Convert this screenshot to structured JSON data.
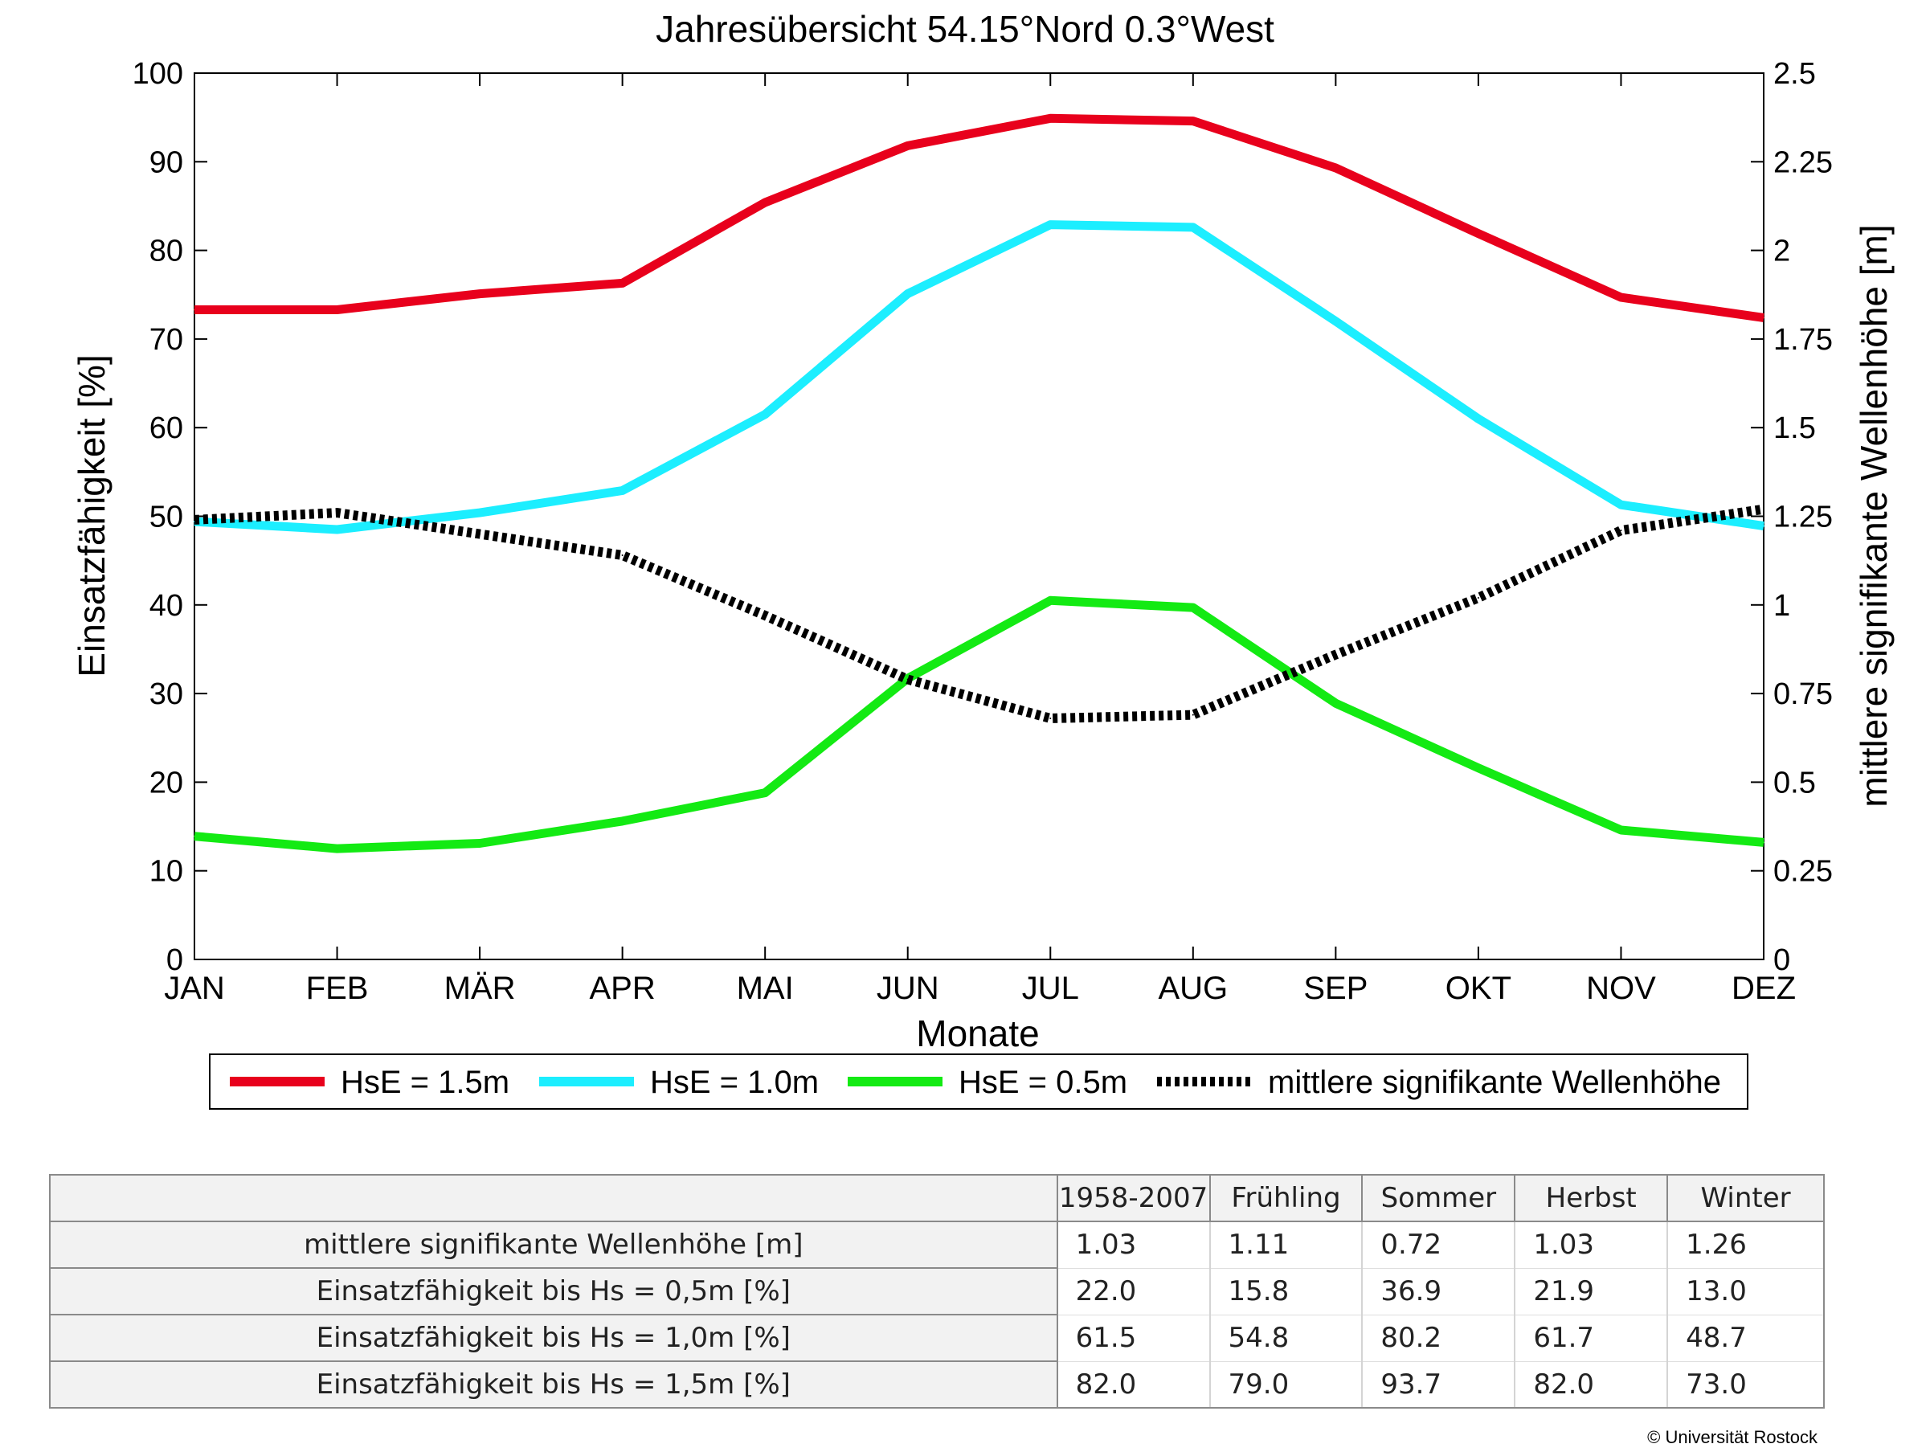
{
  "chart_data": {
    "type": "line",
    "title": "Jahresübersicht  54.15°Nord  0.3°West",
    "xlabel": "Monate",
    "ylabel": "Einsatzfähigkeit [%]",
    "y2label": "mittlere signifikante Wellenhöhe [m]",
    "categories": [
      "JAN",
      "FEB",
      "MÄR",
      "APR",
      "MAI",
      "JUN",
      "JUL",
      "AUG",
      "SEP",
      "OKT",
      "NOV",
      "DEZ"
    ],
    "ylim": [
      0,
      100
    ],
    "y2lim": [
      0,
      2.5
    ],
    "yticks": [
      "0",
      "10",
      "20",
      "30",
      "40",
      "50",
      "60",
      "70",
      "80",
      "90",
      "100"
    ],
    "y2ticks": [
      "0",
      "0.25",
      "0.5",
      "0.75",
      "1",
      "1.25",
      "1.5",
      "1.75",
      "2",
      "2.25",
      "2.5"
    ],
    "legend_position": "bottom",
    "series": [
      {
        "name": "HsE = 1.5m",
        "axis": "left",
        "color": "#e8001c",
        "style": "solid",
        "values": [
          73.3,
          73.3,
          75.1,
          76.3,
          85.4,
          91.8,
          94.9,
          94.6,
          89.3,
          81.9,
          74.7,
          72.4
        ]
      },
      {
        "name": "HsE = 1.0m",
        "axis": "left",
        "color": "#1ceeff",
        "style": "solid",
        "values": [
          49.4,
          48.5,
          50.4,
          52.9,
          61.5,
          75.1,
          82.9,
          82.6,
          72.0,
          61.0,
          51.3,
          48.9
        ]
      },
      {
        "name": "HsE = 0.5m",
        "axis": "left",
        "color": "#13ea13",
        "style": "solid",
        "values": [
          13.9,
          12.5,
          13.1,
          15.6,
          18.8,
          31.7,
          40.5,
          39.7,
          28.9,
          21.6,
          14.6,
          13.2
        ]
      },
      {
        "name": "mittlere signifikante Wellenhöhe",
        "axis": "right",
        "color": "#000000",
        "style": "dotted",
        "values": [
          1.24,
          1.26,
          1.2,
          1.14,
          0.97,
          0.79,
          0.68,
          0.69,
          0.86,
          1.02,
          1.21,
          1.27
        ]
      }
    ]
  },
  "table": {
    "columns": [
      "1958-2007",
      "Frühling",
      "Sommer",
      "Herbst",
      "Winter"
    ],
    "rows": [
      {
        "label": "mittlere signifikante Wellenhöhe [m]",
        "values": [
          "1.03",
          "1.11",
          "0.72",
          "1.03",
          "1.26"
        ]
      },
      {
        "label": "Einsatzfähigkeit bis Hs = 0,5m [%]",
        "values": [
          "22.0",
          "15.8",
          "36.9",
          "21.9",
          "13.0"
        ]
      },
      {
        "label": "Einsatzfähigkeit bis Hs = 1,0m [%]",
        "values": [
          "61.5",
          "54.8",
          "80.2",
          "61.7",
          "48.7"
        ]
      },
      {
        "label": "Einsatzfähigkeit bis Hs = 1,5m [%]",
        "values": [
          "82.0",
          "79.0",
          "93.7",
          "82.0",
          "73.0"
        ]
      }
    ]
  },
  "footer": {
    "copyright": "© Universität Rostock"
  }
}
